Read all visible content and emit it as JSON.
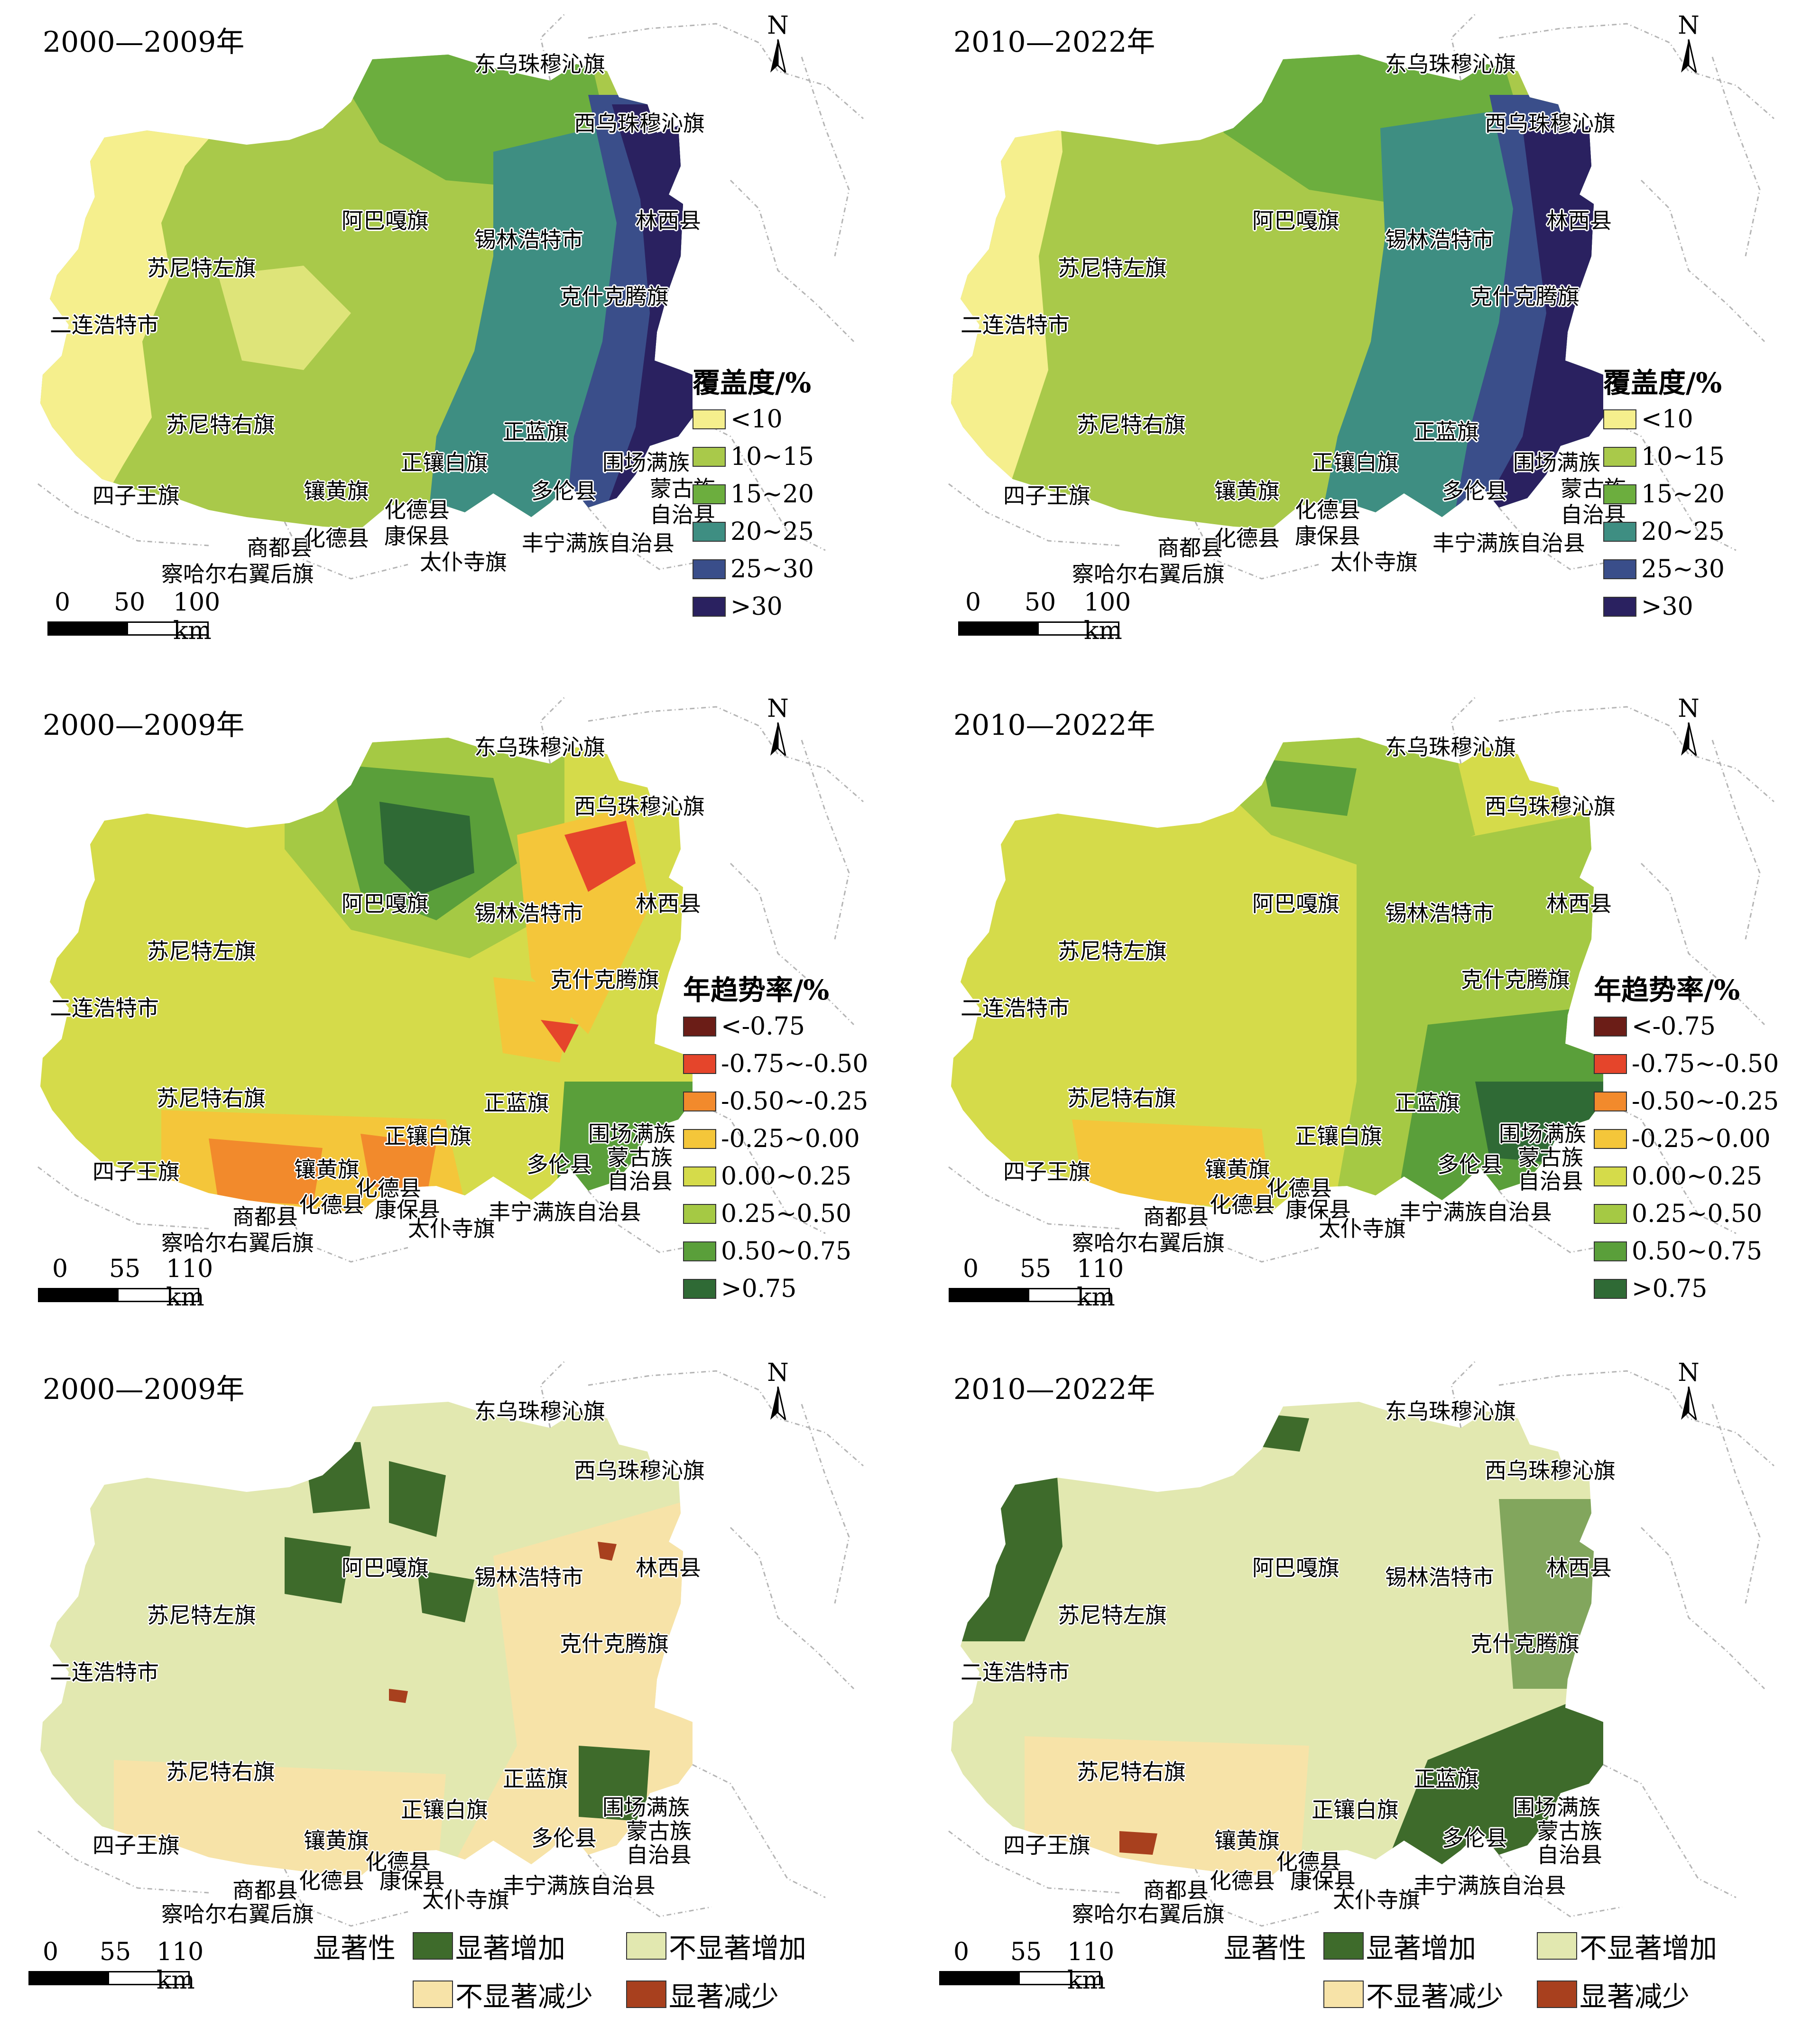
{
  "colors": {
    "coverage": [
      "#f5ef8d",
      "#a9c94a",
      "#6cae3e",
      "#3e8e82",
      "#3a4e8a",
      "#2a2160"
    ],
    "trend": [
      "#6b1d17",
      "#e5452b",
      "#f28a2c",
      "#f4c63a",
      "#d5db4a",
      "#a5c944",
      "#5a9f3a",
      "#2f6a35"
    ],
    "significance": [
      "#3e6b2b",
      "#e2e8b0",
      "#f7e3a8",
      "#a8401e"
    ]
  },
  "place_names": {
    "dongwu": "东乌珠穆沁旗",
    "xiwu": "西乌珠穆沁旗",
    "linxi": "林西县",
    "abag": "阿巴嘎旗",
    "xilinhot": "锡林浩特市",
    "sunitezuo": "苏尼特左旗",
    "keshiketeng": "克什克腾旗",
    "erlianhot": "二连浩特市",
    "suniteyou": "苏尼特右旗",
    "zhenglan": "正蓝旗",
    "zhengxiangbai": "正镶白旗",
    "weichang1": "围场满族",
    "weichang2": "蒙古族",
    "weichang3": "自治县",
    "siziwang": "四子王旗",
    "xianghuang": "镶黄旗",
    "duolun": "多伦县",
    "huade": "化德县",
    "shangdu": "商都县",
    "kangbao": "康保县",
    "fengning": "丰宁满族自治县",
    "taipusi": "太仆寺旗",
    "chahaer": "察哈尔右翼后旗"
  },
  "north_label": "N",
  "panels": [
    {
      "period": "2000—2009年",
      "scale": [
        "0",
        "50",
        "100 km"
      ],
      "legend": {
        "title": "覆盖度/%",
        "items": [
          "<10",
          "10~15",
          "15~20",
          "20~25",
          "25~30",
          ">30"
        ]
      }
    },
    {
      "period": "2010—2022年",
      "scale": [
        "0",
        "50",
        "100 km"
      ],
      "legend": {
        "title": "覆盖度/%",
        "items": [
          "<10",
          "10~15",
          "15~20",
          "20~25",
          "25~30",
          ">30"
        ]
      }
    },
    {
      "period": "2000—2009年",
      "scale": [
        "0",
        "55",
        "110 km"
      ],
      "legend": {
        "title": "年趋势率/%",
        "items": [
          "<-0.75",
          "-0.75~-0.50",
          "-0.50~-0.25",
          "-0.25~0.00",
          "0.00~0.25",
          "0.25~0.50",
          "0.50~0.75",
          ">0.75"
        ]
      }
    },
    {
      "period": "2010—2022年",
      "scale": [
        "0",
        "55",
        "110 km"
      ],
      "legend": {
        "title": "年趋势率/%",
        "items": [
          "<-0.75",
          "-0.75~-0.50",
          "-0.50~-0.25",
          "-0.25~0.00",
          "0.00~0.25",
          "0.25~0.50",
          "0.50~0.75",
          ">0.75"
        ]
      }
    },
    {
      "period": "2000—2009年",
      "scale": [
        "0",
        "55",
        "110 km"
      ],
      "legend": {
        "title": "显著性",
        "items": [
          "显著增加",
          "不显著增加",
          "不显著减少",
          "显著减少"
        ]
      }
    },
    {
      "period": "2010—2022年",
      "scale": [
        "0",
        "55",
        "110 km"
      ],
      "legend": {
        "title": "显著性",
        "items": [
          "显著增加",
          "不显著增加",
          "不显著减少",
          "显著减少"
        ]
      }
    }
  ]
}
